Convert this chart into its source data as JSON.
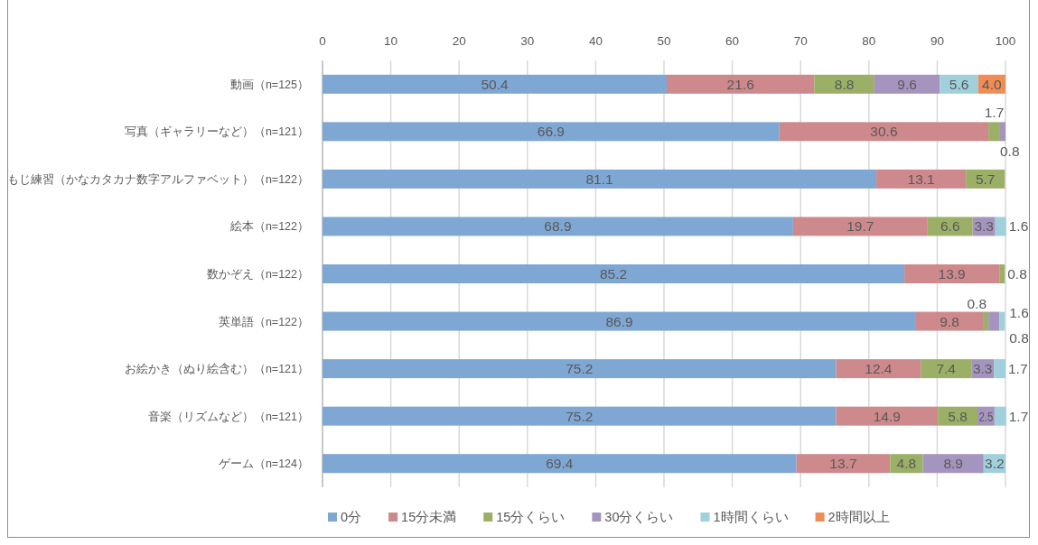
{
  "chart_data": {
    "type": "bar",
    "orientation": "horizontal",
    "stacked": true,
    "categories": [
      "動画（n=125）",
      "写真（ギャラリーなど）（n=121）",
      "もじ練習（かなカタカナ数字アルファベット）（n=122）",
      "絵本（n=122）",
      "数かぞえ（n=122）",
      "英単語（n=122）",
      "お絵かき（ぬり絵含む）（n=121）",
      "音楽（リズムなど）（n=121）",
      "ゲーム（n=124）"
    ],
    "series": [
      {
        "name": "0分",
        "color": "#7ea7d4",
        "values": [
          50.4,
          66.9,
          81.1,
          68.9,
          85.2,
          86.9,
          75.2,
          75.2,
          69.4
        ],
        "value_labels": [
          "50.4",
          "66.9",
          "81.1",
          "68.9",
          "85.2",
          "86.9",
          "75.2",
          "75.2",
          "69.4"
        ]
      },
      {
        "name": "15分未満",
        "color": "#cd898b",
        "values": [
          21.6,
          30.6,
          13.1,
          19.7,
          13.9,
          9.8,
          12.4,
          14.9,
          13.7
        ],
        "value_labels": [
          "21.6",
          "30.6",
          "13.1",
          "19.7",
          "13.9",
          "9.8",
          "12.4",
          "14.9",
          "13.7"
        ]
      },
      {
        "name": "15分くらい",
        "color": "#9bb066",
        "values": [
          8.8,
          1.7,
          5.7,
          6.6,
          0.8,
          0.8,
          7.4,
          5.8,
          4.8
        ],
        "value_labels": [
          "8.8",
          "1.7",
          "5.7",
          "6.6",
          "0.8",
          "0.8",
          "7.4",
          "5.8",
          "4.8"
        ]
      },
      {
        "name": "30分くらい",
        "color": "#a595be",
        "values": [
          9.6,
          0.8,
          null,
          3.3,
          null,
          1.6,
          3.3,
          2.5,
          8.9
        ],
        "value_labels": [
          "9.6",
          "0.8",
          null,
          "3.3",
          null,
          "1.6",
          "3.3",
          "2.5",
          "8.9"
        ]
      },
      {
        "name": "1時間くらい",
        "color": "#a0d0dc",
        "values": [
          5.6,
          null,
          null,
          1.6,
          null,
          0.8,
          1.7,
          1.7,
          3.2
        ],
        "value_labels": [
          "5.6",
          null,
          null,
          "1.6",
          null,
          "0.8",
          "1.7",
          "1.7",
          "3.2"
        ]
      },
      {
        "name": "2時間以上",
        "color": "#f08c55",
        "values": [
          4.0,
          null,
          null,
          null,
          null,
          null,
          null,
          null,
          null
        ],
        "value_labels": [
          "4.0",
          null,
          null,
          null,
          null,
          null,
          null,
          null,
          null
        ]
      }
    ],
    "xlim": [
      0,
      100
    ],
    "xticks": [
      0,
      10,
      20,
      30,
      40,
      50,
      60,
      70,
      80,
      90,
      100
    ],
    "grid": "x",
    "legend": "bottom"
  }
}
